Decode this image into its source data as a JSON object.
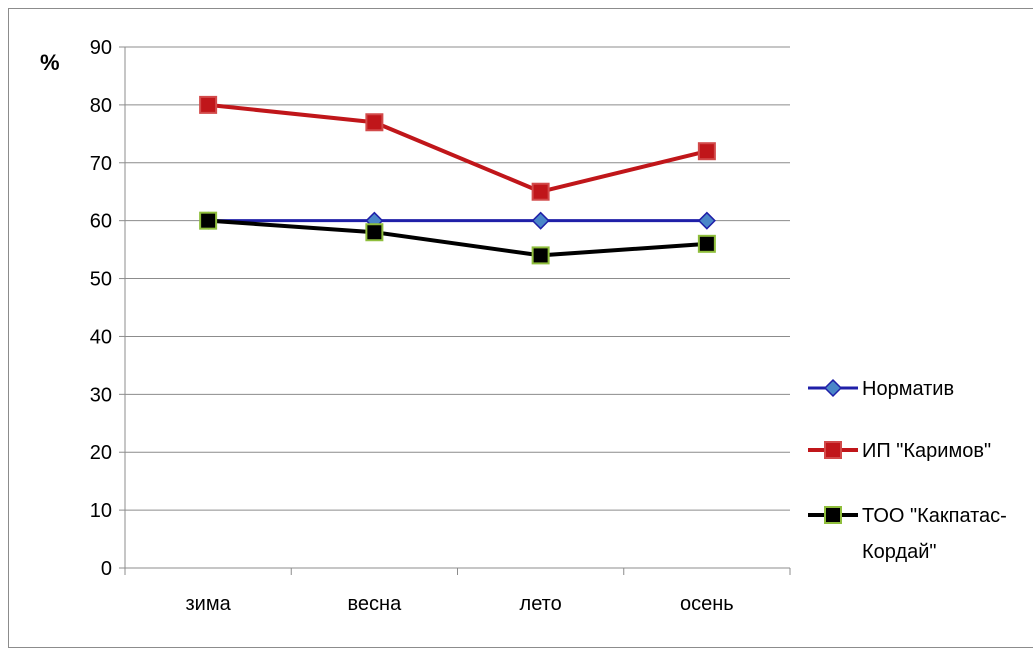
{
  "chart_data": {
    "type": "line",
    "categories": [
      "зима",
      "весна",
      "лето",
      "осень"
    ],
    "ylabel": "%",
    "ylim": [
      0,
      90
    ],
    "yticks": [
      0,
      10,
      20,
      30,
      40,
      50,
      60,
      70,
      80,
      90
    ],
    "grid": true,
    "legend_position": "right",
    "series": [
      {
        "name": "Норматив",
        "values": [
          60,
          60,
          60,
          60
        ],
        "color": "#1f1fa8",
        "marker": "diamond",
        "marker_color": "#4a86c8"
      },
      {
        "name": "ИП \"Каримов\"",
        "values": [
          80,
          77,
          65,
          72
        ],
        "color": "#c0161a",
        "marker": "square",
        "marker_color": "#c0161a"
      },
      {
        "name": "ТОО \"Какпатас-Кордай\"",
        "name_lines": [
          "ТОО \"Какпатас-",
          "Кордай\""
        ],
        "values": [
          60,
          58,
          54,
          56
        ],
        "color": "#000000",
        "marker": "square",
        "marker_color": "#000000",
        "marker_edge": "#8fbe3c"
      }
    ]
  }
}
